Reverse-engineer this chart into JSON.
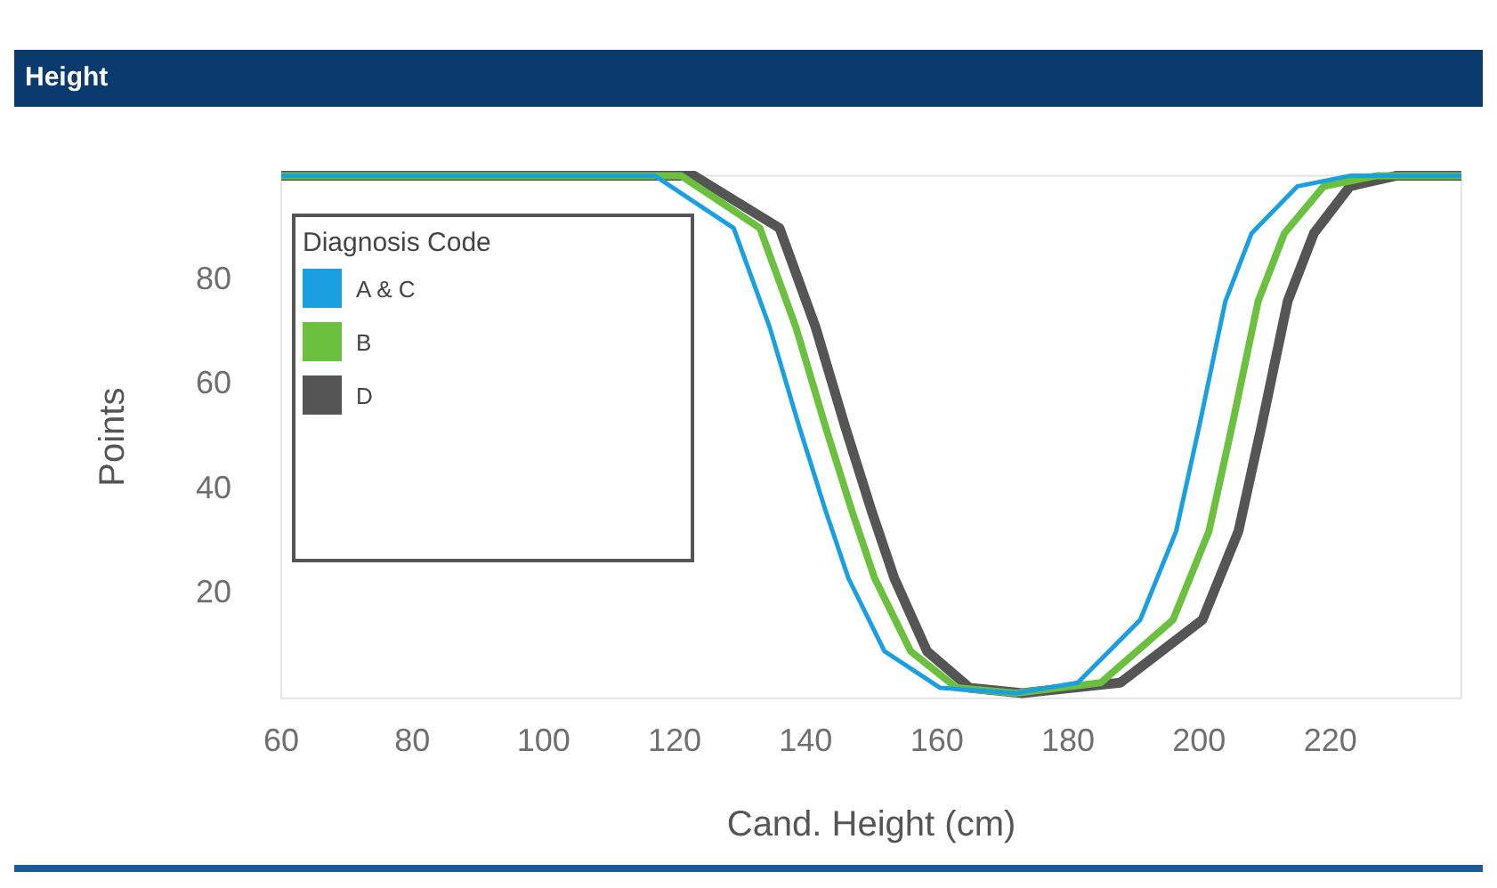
{
  "chart_data": {
    "type": "line",
    "title": "Height",
    "xlabel": "Cand. Height (cm)",
    "ylabel": "Points",
    "legend_title": "Diagnosis Code",
    "legend": "left",
    "grid": false,
    "xlim": [
      60,
      240
    ],
    "xticks": [
      60,
      80,
      100,
      120,
      140,
      160,
      180,
      200,
      220
    ],
    "ylim": [
      0,
      100
    ],
    "yticks": [
      20,
      40,
      60,
      80
    ],
    "series": [
      {
        "name": "A & C",
        "color": "#1aa0e0",
        "x": [
          60,
          117,
          129,
          134.5,
          139,
          143,
          146.5,
          152,
          160.5,
          172,
          181.5,
          191,
          196.5,
          200,
          204,
          208,
          215,
          223,
          240
        ],
        "values": [
          100,
          100,
          90,
          71,
          52,
          36,
          23,
          9,
          2,
          1,
          3,
          15,
          32,
          52,
          76,
          89,
          98,
          100,
          100
        ]
      },
      {
        "name": "B",
        "color": "#6cc040",
        "x": [
          60,
          121,
          133,
          138.5,
          143,
          147,
          150.5,
          156,
          163,
          172,
          185,
          196,
          201.5,
          205,
          209,
          213,
          219,
          227,
          240
        ],
        "values": [
          100,
          100,
          90,
          71,
          52,
          36,
          23,
          9,
          2,
          1,
          3,
          15,
          32,
          52,
          76,
          89,
          98,
          100,
          100
        ]
      },
      {
        "name": "D",
        "color": "#555555",
        "x": [
          60,
          123,
          136,
          141.5,
          146,
          150,
          153.5,
          158.5,
          165,
          173,
          188,
          200.5,
          206,
          209.5,
          213.5,
          217.5,
          223,
          230,
          240
        ],
        "values": [
          100,
          100,
          90,
          71,
          52,
          36,
          23,
          9,
          2,
          1,
          3,
          15,
          32,
          52,
          76,
          89,
          98,
          100,
          100
        ]
      }
    ]
  }
}
